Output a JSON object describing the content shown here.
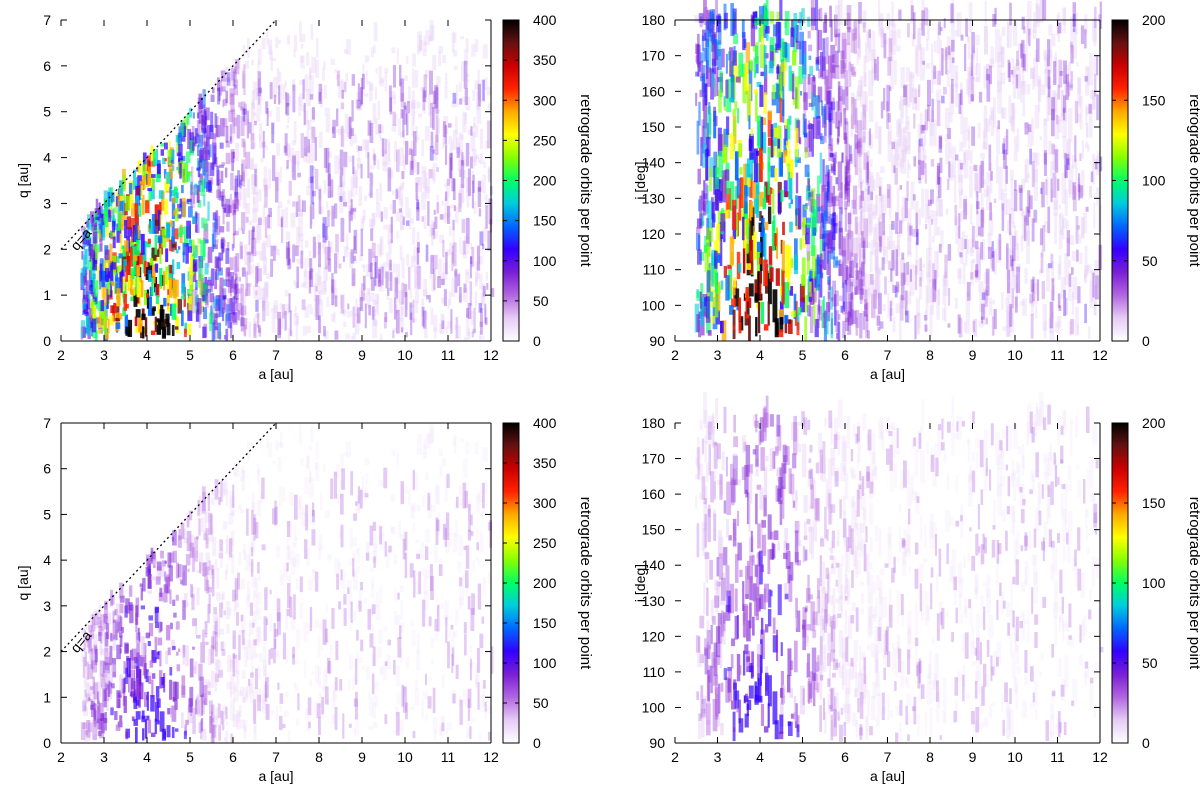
{
  "charts": [
    {
      "type": "heatmap",
      "xlabel": "a [au]",
      "ylabel": "q [au]",
      "xlim": [
        2,
        12
      ],
      "ylim": [
        0,
        7
      ],
      "xticks": [
        "2",
        "3",
        "4",
        "5",
        "6",
        "7",
        "8",
        "9",
        "10",
        "11",
        "12"
      ],
      "yticks": [
        "0",
        "1",
        "2",
        "3",
        "4",
        "5",
        "6",
        "7"
      ],
      "colorbar": {
        "label": "retrograde orbits per point",
        "ticks": [
          "0",
          "50",
          "100",
          "150",
          "200",
          "250",
          "300",
          "350",
          "400"
        ],
        "range": [
          0,
          400
        ]
      },
      "annotation": {
        "text": "q=a",
        "line": "q=a"
      },
      "intensity": "high",
      "show_left_spine": false
    },
    {
      "type": "heatmap",
      "xlabel": "a [au]",
      "ylabel": "i [deg]",
      "xlim": [
        2,
        12
      ],
      "ylim": [
        90,
        180
      ],
      "xticks": [
        "2",
        "3",
        "4",
        "5",
        "6",
        "7",
        "8",
        "9",
        "10",
        "11",
        "12"
      ],
      "yticks": [
        "90",
        "100",
        "110",
        "120",
        "130",
        "140",
        "150",
        "160",
        "170",
        "180"
      ],
      "colorbar": {
        "label": "retrograde orbits per point",
        "ticks": [
          "0",
          "50",
          "100",
          "150",
          "200"
        ],
        "range": [
          0,
          200
        ]
      },
      "intensity": "high",
      "show_left_spine": false
    },
    {
      "type": "heatmap",
      "xlabel": "a [au]",
      "ylabel": "q [au]",
      "xlim": [
        2,
        12
      ],
      "ylim": [
        0,
        7
      ],
      "xticks": [
        "2",
        "3",
        "4",
        "5",
        "6",
        "7",
        "8",
        "9",
        "10",
        "11",
        "12"
      ],
      "yticks": [
        "0",
        "1",
        "2",
        "3",
        "4",
        "5",
        "6",
        "7"
      ],
      "colorbar": {
        "label": "retrograde orbits per point",
        "ticks": [
          "0",
          "50",
          "100",
          "150",
          "200",
          "250",
          "300",
          "350",
          "400"
        ],
        "range": [
          0,
          400
        ]
      },
      "annotation": {
        "text": "q=a",
        "line": "q=a"
      },
      "intensity": "low",
      "show_left_spine": true
    },
    {
      "type": "heatmap",
      "xlabel": "a [au]",
      "ylabel": "i [deg]",
      "xlim": [
        2,
        12
      ],
      "ylim": [
        90,
        180
      ],
      "xticks": [
        "2",
        "3",
        "4",
        "5",
        "6",
        "7",
        "8",
        "9",
        "10",
        "11",
        "12"
      ],
      "yticks": [
        "90",
        "100",
        "110",
        "120",
        "130",
        "140",
        "150",
        "160",
        "170",
        "180"
      ],
      "colorbar": {
        "label": "retrograde orbits per point",
        "ticks": [
          "0",
          "50",
          "100",
          "150",
          "200"
        ],
        "range": [
          0,
          200
        ]
      },
      "intensity": "low",
      "show_left_spine": false
    }
  ],
  "colormap": [
    "#ffffff",
    "#e6ccf5",
    "#b266e0",
    "#7a1fd6",
    "#3300ff",
    "#0066ff",
    "#00ccdd",
    "#00ff66",
    "#88ff00",
    "#ffff00",
    "#ffaa00",
    "#ff2200",
    "#cc0000",
    "#661111",
    "#000000"
  ]
}
